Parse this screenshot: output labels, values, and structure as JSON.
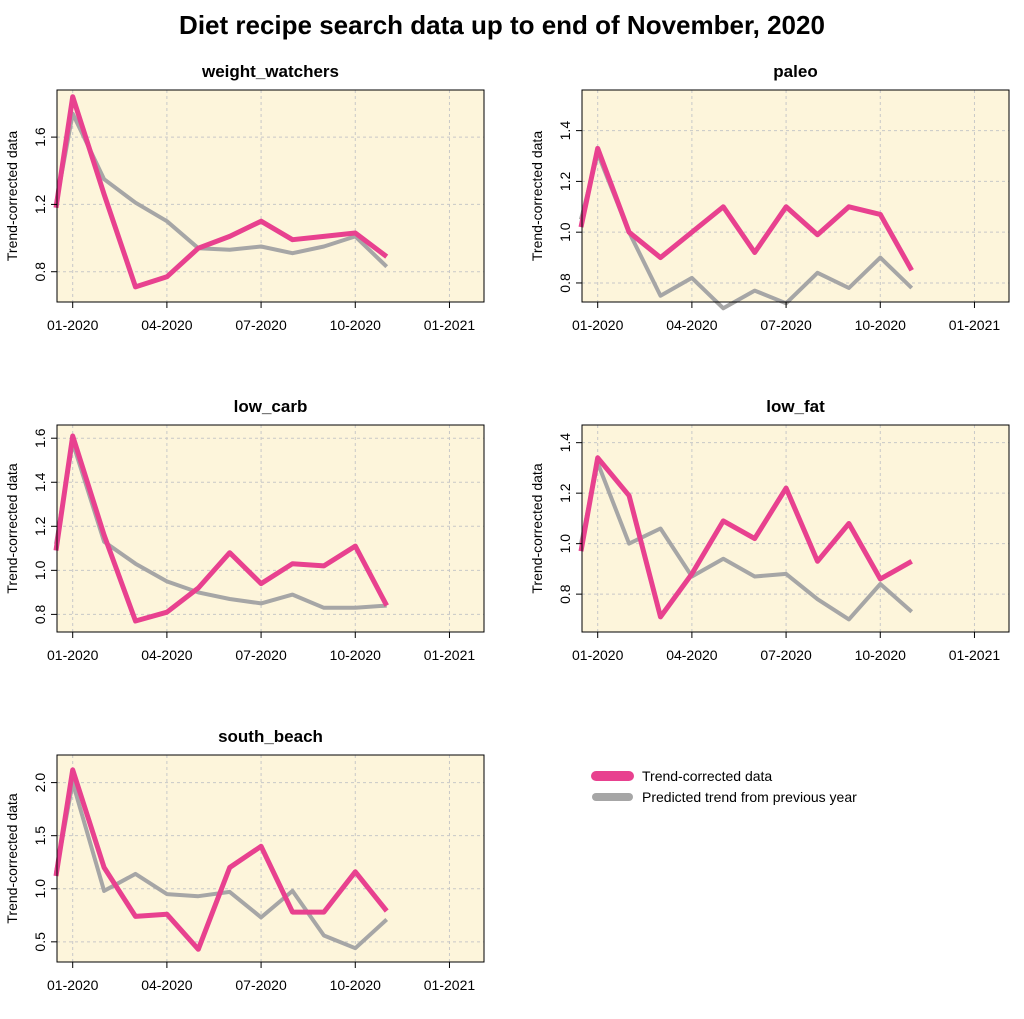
{
  "title": "Diet recipe search data up to end of November, 2020",
  "legend": {
    "placement": "right-middle",
    "items": [
      {
        "label": "Trend-corrected data",
        "color": "#e8418f"
      },
      {
        "label": "Predicted trend from previous year",
        "color": "#a6a6a6"
      }
    ]
  },
  "colors": {
    "panel_background": "#fdf5db",
    "grid": "#c8c8c8",
    "trend": "#e8418f",
    "predicted": "#a6a6a6"
  },
  "chart_data": [
    {
      "type": "line",
      "title": "weight_watchers",
      "ylabel": "Trend-corrected data",
      "xticks": [
        "01-2020",
        "04-2020",
        "07-2020",
        "10-2020",
        "01-2021"
      ],
      "yticks": [
        0.8,
        1.2,
        1.6
      ],
      "ylim": [
        0.62,
        1.88
      ],
      "grid": true,
      "x": [
        "2019-12-15",
        "2020-01",
        "2020-02",
        "2020-03",
        "2020-04",
        "2020-05",
        "2020-06",
        "2020-07",
        "2020-08",
        "2020-09",
        "2020-10",
        "2020-11"
      ],
      "series": [
        {
          "name": "Trend-corrected data",
          "values": [
            1.18,
            1.84,
            1.26,
            0.71,
            0.77,
            0.94,
            1.01,
            1.1,
            0.99,
            1.01,
            1.03,
            0.89
          ]
        },
        {
          "name": "Predicted trend from previous year",
          "values": [
            1.2,
            1.74,
            1.35,
            1.21,
            1.1,
            0.94,
            0.93,
            0.95,
            0.91,
            0.95,
            1.01,
            0.83
          ]
        }
      ]
    },
    {
      "type": "line",
      "title": "paleo",
      "ylabel": "Trend-corrected data",
      "xticks": [
        "01-2020",
        "04-2020",
        "07-2020",
        "10-2020",
        "01-2021"
      ],
      "yticks": [
        0.8,
        1.0,
        1.2,
        1.4
      ],
      "ylim": [
        0.725,
        1.56
      ],
      "grid": true,
      "x": [
        "2019-12-15",
        "2020-01",
        "2020-02",
        "2020-03",
        "2020-04",
        "2020-05",
        "2020-06",
        "2020-07",
        "2020-08",
        "2020-09",
        "2020-10",
        "2020-11"
      ],
      "series": [
        {
          "name": "Trend-corrected data",
          "values": [
            1.02,
            1.33,
            1.0,
            0.9,
            1.0,
            1.1,
            0.92,
            1.1,
            0.99,
            1.1,
            1.07,
            0.85
          ]
        },
        {
          "name": "Predicted trend from previous year",
          "values": [
            1.05,
            1.31,
            1.0,
            0.75,
            0.82,
            0.7,
            0.77,
            0.72,
            0.84,
            0.78,
            0.9,
            0.78
          ]
        }
      ]
    },
    {
      "type": "line",
      "title": "low_carb",
      "ylabel": "Trend-corrected data",
      "xticks": [
        "01-2020",
        "04-2020",
        "07-2020",
        "10-2020",
        "01-2021"
      ],
      "yticks": [
        0.8,
        1.0,
        1.2,
        1.4,
        1.6
      ],
      "ylim": [
        0.72,
        1.66
      ],
      "grid": true,
      "x": [
        "2019-12-15",
        "2020-01",
        "2020-02",
        "2020-03",
        "2020-04",
        "2020-05",
        "2020-06",
        "2020-07",
        "2020-08",
        "2020-09",
        "2020-10",
        "2020-11"
      ],
      "series": [
        {
          "name": "Trend-corrected data",
          "values": [
            1.09,
            1.61,
            1.16,
            0.77,
            0.81,
            0.92,
            1.08,
            0.94,
            1.03,
            1.02,
            1.11,
            0.84
          ]
        },
        {
          "name": "Predicted trend from previous year",
          "values": [
            1.12,
            1.58,
            1.13,
            1.03,
            0.95,
            0.9,
            0.87,
            0.85,
            0.89,
            0.83,
            0.83,
            0.84
          ]
        }
      ]
    },
    {
      "type": "line",
      "title": "low_fat",
      "ylabel": "Trend-corrected data",
      "xticks": [
        "01-2020",
        "04-2020",
        "07-2020",
        "10-2020",
        "01-2021"
      ],
      "yticks": [
        0.8,
        1.0,
        1.2,
        1.4
      ],
      "ylim": [
        0.65,
        1.47
      ],
      "grid": true,
      "x": [
        "2019-12-15",
        "2020-01",
        "2020-02",
        "2020-03",
        "2020-04",
        "2020-05",
        "2020-06",
        "2020-07",
        "2020-08",
        "2020-09",
        "2020-10",
        "2020-11"
      ],
      "series": [
        {
          "name": "Trend-corrected data",
          "values": [
            0.97,
            1.34,
            1.19,
            0.71,
            0.88,
            1.09,
            1.02,
            1.22,
            0.93,
            1.08,
            0.86,
            0.93
          ]
        },
        {
          "name": "Predicted trend from previous year",
          "values": [
            1.0,
            1.32,
            1.0,
            1.06,
            0.87,
            0.94,
            0.87,
            0.88,
            0.78,
            0.7,
            0.84,
            0.73
          ]
        }
      ]
    },
    {
      "type": "line",
      "title": "south_beach",
      "ylabel": "Trend-corrected data",
      "xticks": [
        "01-2020",
        "04-2020",
        "07-2020",
        "10-2020",
        "01-2021"
      ],
      "yticks": [
        0.5,
        1.0,
        1.5,
        2.0
      ],
      "ylim": [
        0.31,
        2.26
      ],
      "grid": true,
      "x": [
        "2019-12-15",
        "2020-01",
        "2020-02",
        "2020-03",
        "2020-04",
        "2020-05",
        "2020-06",
        "2020-07",
        "2020-08",
        "2020-09",
        "2020-10",
        "2020-11"
      ],
      "series": [
        {
          "name": "Trend-corrected data",
          "values": [
            1.12,
            2.12,
            1.2,
            0.74,
            0.76,
            0.43,
            1.2,
            1.4,
            0.78,
            0.78,
            1.16,
            0.79
          ]
        },
        {
          "name": "Predicted trend from previous year",
          "values": [
            1.15,
            2.0,
            0.98,
            1.14,
            0.95,
            0.93,
            0.97,
            0.73,
            0.98,
            0.56,
            0.44,
            0.71
          ]
        }
      ]
    }
  ]
}
